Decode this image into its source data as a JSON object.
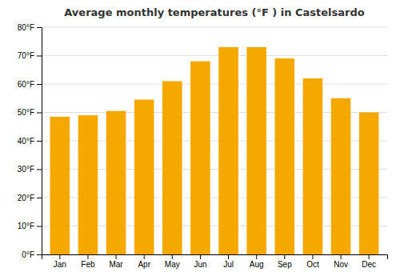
{
  "chart_data": {
    "type": "bar",
    "title": "Average monthly temperatures (°F ) in Castelsardo",
    "categories": [
      "Jan",
      "Feb",
      "Mar",
      "Apr",
      "May",
      "Jun",
      "Jul",
      "Aug",
      "Sep",
      "Oct",
      "Nov",
      "Dec"
    ],
    "values": [
      48.5,
      49,
      50.5,
      54.5,
      61,
      68,
      73,
      73,
      69,
      62,
      55,
      50
    ],
    "color": "#F5A800",
    "ylim": [
      0,
      80
    ],
    "yticks": [
      {
        "value": 0,
        "label": "0°F"
      },
      {
        "value": 10,
        "label": "10°F"
      },
      {
        "value": 20,
        "label": "20°F"
      },
      {
        "value": 30,
        "label": "30°F"
      },
      {
        "value": 40,
        "label": "40°F"
      },
      {
        "value": 50,
        "label": "50°F"
      },
      {
        "value": 60,
        "label": "60°F"
      },
      {
        "value": 70,
        "label": "70°F"
      },
      {
        "value": 80,
        "label": "80°F"
      }
    ],
    "grid": true
  }
}
